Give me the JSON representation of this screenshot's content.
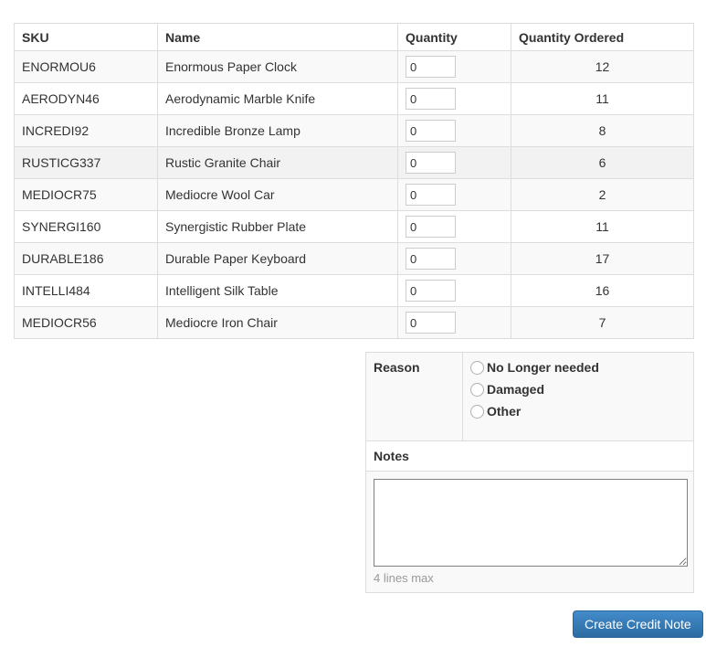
{
  "table": {
    "headers": [
      "SKU",
      "Name",
      "Quantity",
      "Quantity Ordered"
    ],
    "highlighted_row_index": 3,
    "rows": [
      {
        "sku": "ENORMOU6",
        "name": "Enormous Paper Clock",
        "quantity": "0",
        "ordered": "12"
      },
      {
        "sku": "AERODYN46",
        "name": "Aerodynamic Marble Knife",
        "quantity": "0",
        "ordered": "11"
      },
      {
        "sku": "INCREDI92",
        "name": "Incredible Bronze Lamp",
        "quantity": "0",
        "ordered": "8"
      },
      {
        "sku": "RUSTICG337",
        "name": "Rustic Granite Chair",
        "quantity": "0",
        "ordered": "6"
      },
      {
        "sku": "MEDIOCR75",
        "name": "Mediocre Wool Car",
        "quantity": "0",
        "ordered": "2"
      },
      {
        "sku": "SYNERGI160",
        "name": "Synergistic Rubber Plate",
        "quantity": "0",
        "ordered": "11"
      },
      {
        "sku": "DURABLE186",
        "name": "Durable Paper Keyboard",
        "quantity": "0",
        "ordered": "17"
      },
      {
        "sku": "INTELLI484",
        "name": "Intelligent Silk Table",
        "quantity": "0",
        "ordered": "16"
      },
      {
        "sku": "MEDIOCR56",
        "name": "Mediocre Iron Chair",
        "quantity": "0",
        "ordered": "7"
      }
    ]
  },
  "form": {
    "reason_label": "Reason",
    "reasons": [
      {
        "label": "No Longer needed",
        "checked": false
      },
      {
        "label": "Damaged",
        "checked": false
      },
      {
        "label": "Other",
        "checked": false
      }
    ],
    "notes_label": "Notes",
    "notes_value": "",
    "notes_hint": "4 lines max",
    "submit_label": "Create Credit Note"
  },
  "colors": {
    "accent_top": "#428bca",
    "accent_bottom": "#2d6ca2",
    "accent_border": "#2b669a",
    "stripe": "#f9f9f9",
    "highlight": "#f2f2f2",
    "table_border": "#dddddd",
    "hint_text": "#999999"
  }
}
